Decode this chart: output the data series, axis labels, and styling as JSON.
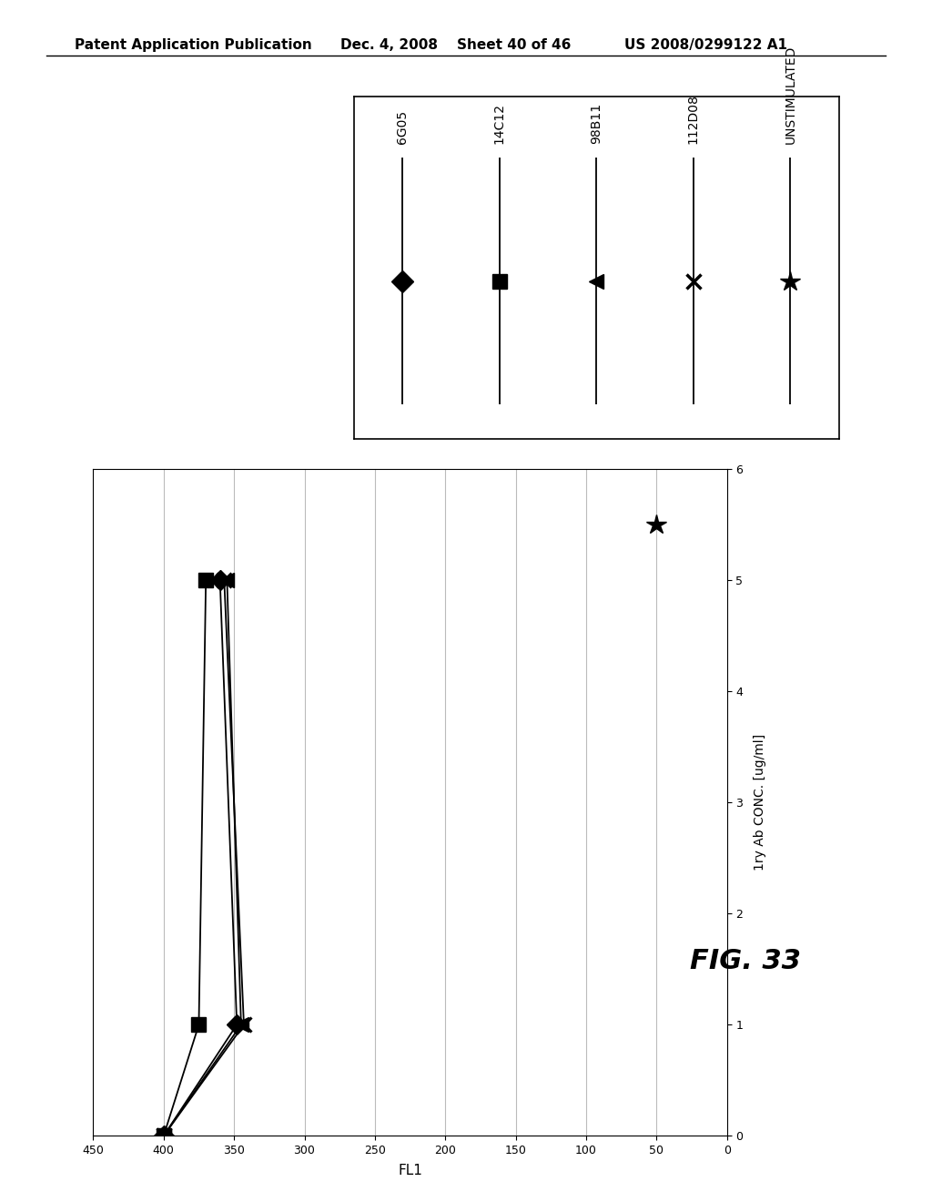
{
  "header_left": "Patent Application Publication",
  "header_center": "Dec. 4, 2008    Sheet 40 of 46",
  "header_right": "US 2008/0299122 A1",
  "fig_label": "FIG. 33",
  "conc_label": "1ry Ab CONC. [ug/ml]",
  "fl1_label": "FL1",
  "conc_lim": [
    0,
    6
  ],
  "fl1_lim": [
    0,
    450
  ],
  "fl1_ticks": [
    0,
    50,
    100,
    150,
    200,
    250,
    300,
    350,
    400,
    450
  ],
  "conc_ticks": [
    0,
    1,
    2,
    3,
    4,
    5,
    6
  ],
  "series_6G05": {
    "conc": [
      0,
      1,
      5
    ],
    "fl1": [
      400,
      348,
      360
    ],
    "marker": "D"
  },
  "series_14C12": {
    "conc": [
      0,
      1,
      5
    ],
    "fl1": [
      400,
      375,
      370
    ],
    "marker": "s"
  },
  "series_98B11": {
    "conc": [
      0,
      1,
      5
    ],
    "fl1": [
      400,
      345,
      355
    ],
    "marker": "<"
  },
  "series_112D08": {
    "conc": [
      0,
      1,
      5
    ],
    "fl1": [
      400,
      343,
      357
    ],
    "marker": "x"
  },
  "series_UNSTIMULATED": {
    "conc": [
      5.5
    ],
    "fl1": [
      50
    ],
    "marker": "*"
  },
  "background_color": "#ffffff",
  "line_color": "#000000",
  "grid_color": "#bbbbbb",
  "legend_labels": [
    "6G05",
    "14C12",
    "98B11",
    "112D08",
    "UNSTIMULATED"
  ],
  "legend_markers": [
    "D",
    "s",
    "<",
    "x",
    "*"
  ]
}
